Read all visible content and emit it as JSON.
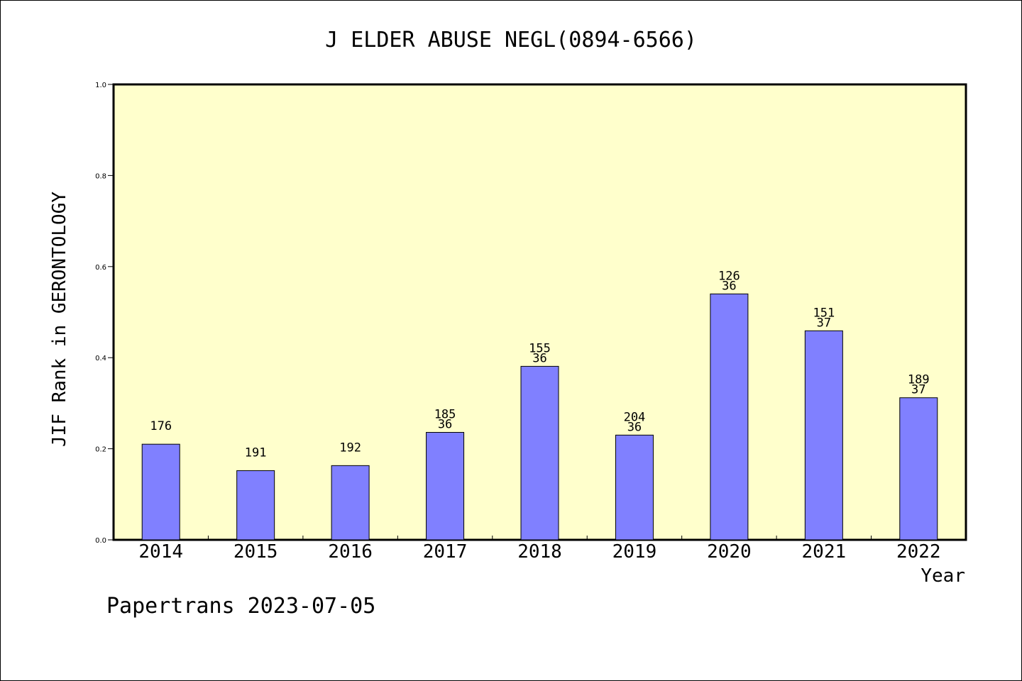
{
  "chart_data": {
    "type": "bar",
    "title": "J ELDER ABUSE NEGL(0894-6566)",
    "xlabel": "Year",
    "ylabel": "JIF Rank in GERONTOLOGY",
    "ylim": [
      0,
      1.0
    ],
    "yticks": [
      "0.0",
      "0.2",
      "0.4",
      "0.6",
      "0.8",
      "1.0"
    ],
    "categories": [
      "2014",
      "2015",
      "2016",
      "2017",
      "2018",
      "2019",
      "2020",
      "2021",
      "2022"
    ],
    "values": [
      0.21,
      0.152,
      0.163,
      0.236,
      0.381,
      0.23,
      0.54,
      0.459,
      0.312
    ],
    "bar_labels_top": [
      "176",
      "191",
      "192",
      "185",
      "155",
      "204",
      "126",
      "151",
      "189"
    ],
    "bar_labels_bottom": [
      "",
      "",
      "",
      "36",
      "36",
      "36",
      "36",
      "37",
      "37"
    ],
    "grid": false,
    "colors": {
      "bar": "#8080ff",
      "plot_background": "#ffffcc"
    }
  },
  "footer": "Papertrans 2023-07-05"
}
